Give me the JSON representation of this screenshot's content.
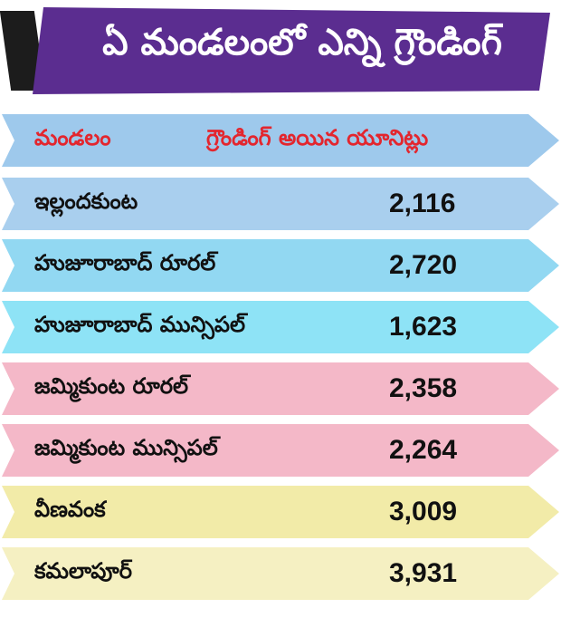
{
  "title": "ఏ మండలంలో ఎన్ని గ్రౌండింగ్",
  "colors": {
    "title_bg": "#5b2d90",
    "title_text": "#ffffff",
    "header_text": "#e3262e",
    "header_bg": "#9ec9ec",
    "blue_light": "#a9cfee",
    "blue_mid": "#92d8f2",
    "blue_bright": "#8ee3f6",
    "pink": "#f4b8c8",
    "yellow": "#f2eba8",
    "yellow_light": "#f5f0c2",
    "value_text": "#111111"
  },
  "table": {
    "header": {
      "mandal": "మండలం",
      "units": "గ్రౌండింగ్ అయిన యూనిట్లు"
    },
    "rows": [
      {
        "name": "ఇల్లందకుంట",
        "value": "2,116",
        "color": "#a9cfee"
      },
      {
        "name": "హుజూరాబాద్ రూరల్",
        "value": "2,720",
        "color": "#92d8f2"
      },
      {
        "name": "హుజూరాబాద్ మున్సిపల్",
        "value": "1,623",
        "color": "#8ee3f6"
      },
      {
        "name": "జమ్మికుంట రూరల్",
        "value": "2,358",
        "color": "#f4b8c8"
      },
      {
        "name": "జమ్మికుంట మున్సిపల్",
        "value": "2,264",
        "color": "#f4b8c8"
      },
      {
        "name": "వీణవంక",
        "value": "3,009",
        "color": "#f2eba8"
      },
      {
        "name": "కమలాపూర్",
        "value": "3,931",
        "color": "#f5f0c2"
      }
    ]
  }
}
